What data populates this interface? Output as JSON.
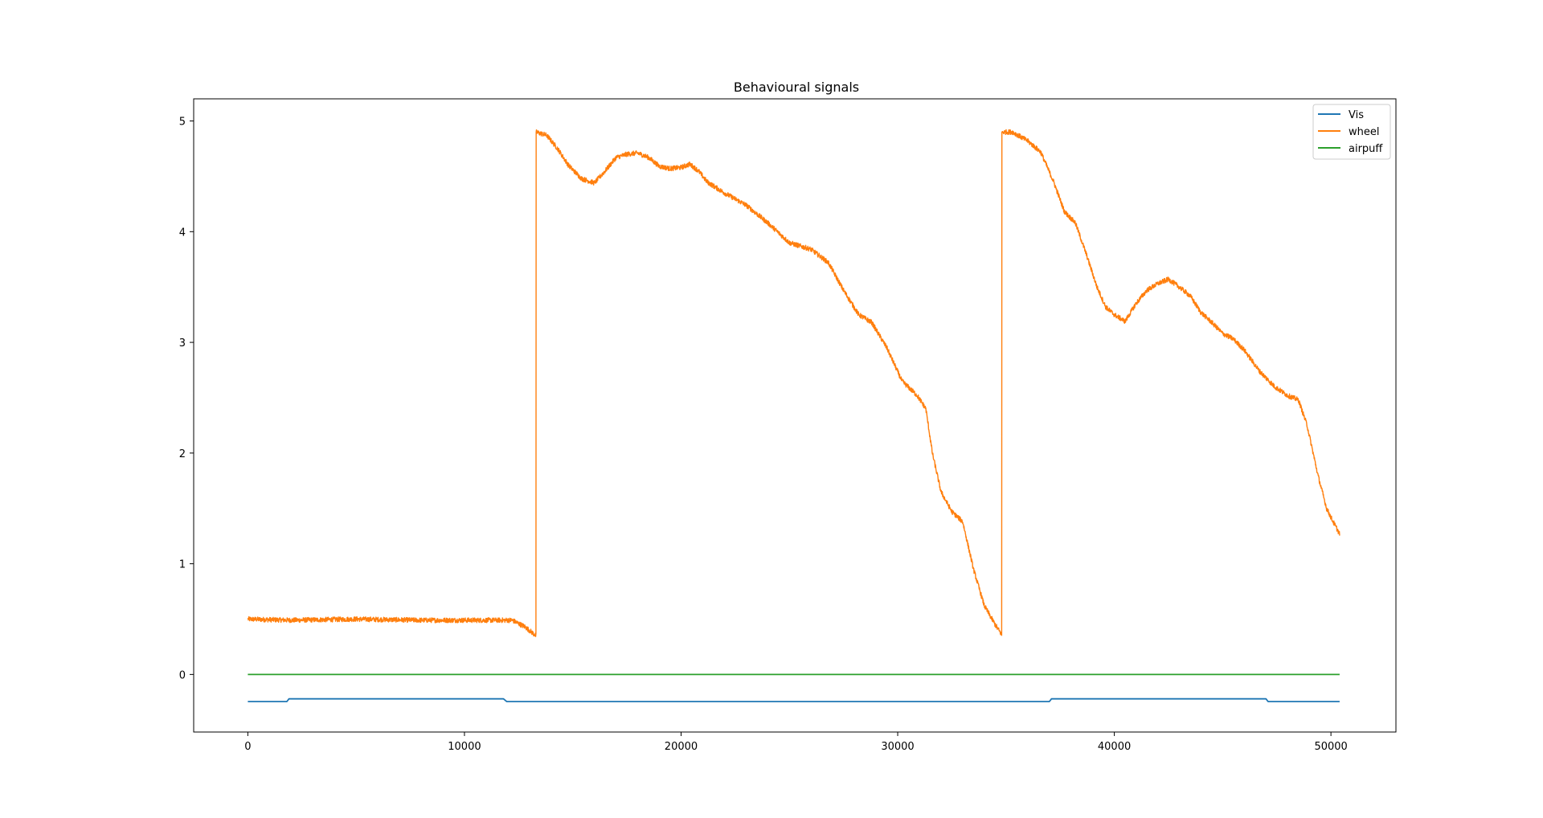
{
  "chart_data": {
    "type": "line",
    "title": "Behavioural signals",
    "xlabel": "",
    "ylabel": "",
    "xlim": [
      -2500,
      53000
    ],
    "ylim": [
      -0.52,
      5.2
    ],
    "xticks": [
      0,
      10000,
      20000,
      30000,
      40000,
      50000
    ],
    "yticks": [
      0,
      1,
      2,
      3,
      4,
      5
    ],
    "grid": false,
    "legend_position": "top-right",
    "series": [
      {
        "name": "Vis",
        "color": "#1f77b4",
        "noise": 0,
        "points": [
          [
            0,
            -0.245
          ],
          [
            1800,
            -0.245
          ],
          [
            1900,
            -0.22
          ],
          [
            11800,
            -0.22
          ],
          [
            11950,
            -0.245
          ],
          [
            37000,
            -0.245
          ],
          [
            37100,
            -0.22
          ],
          [
            47000,
            -0.22
          ],
          [
            47100,
            -0.245
          ],
          [
            50400,
            -0.245
          ]
        ]
      },
      {
        "name": "wheel",
        "color": "#ff7f0e",
        "noise": 0.022,
        "points": [
          [
            0,
            0.5
          ],
          [
            2000,
            0.49
          ],
          [
            5000,
            0.5
          ],
          [
            8000,
            0.49
          ],
          [
            11000,
            0.49
          ],
          [
            12200,
            0.49
          ],
          [
            12800,
            0.43
          ],
          [
            13300,
            0.35
          ],
          [
            13310,
            4.9
          ],
          [
            13800,
            4.87
          ],
          [
            14300,
            4.75
          ],
          [
            14800,
            4.6
          ],
          [
            15400,
            4.48
          ],
          [
            16000,
            4.44
          ],
          [
            16500,
            4.55
          ],
          [
            17000,
            4.67
          ],
          [
            17500,
            4.7
          ],
          [
            18000,
            4.71
          ],
          [
            18500,
            4.67
          ],
          [
            19000,
            4.59
          ],
          [
            19500,
            4.57
          ],
          [
            20000,
            4.58
          ],
          [
            20400,
            4.61
          ],
          [
            20800,
            4.55
          ],
          [
            21200,
            4.45
          ],
          [
            22000,
            4.35
          ],
          [
            23000,
            4.24
          ],
          [
            24000,
            4.08
          ],
          [
            25000,
            3.9
          ],
          [
            26000,
            3.84
          ],
          [
            26800,
            3.72
          ],
          [
            27500,
            3.47
          ],
          [
            28200,
            3.25
          ],
          [
            28800,
            3.18
          ],
          [
            29500,
            2.95
          ],
          [
            30200,
            2.65
          ],
          [
            30900,
            2.52
          ],
          [
            31300,
            2.4
          ],
          [
            31600,
            2.0
          ],
          [
            32000,
            1.65
          ],
          [
            32500,
            1.47
          ],
          [
            33000,
            1.38
          ],
          [
            33500,
            0.95
          ],
          [
            34000,
            0.62
          ],
          [
            34500,
            0.45
          ],
          [
            34800,
            0.36
          ],
          [
            34810,
            4.9
          ],
          [
            35300,
            4.9
          ],
          [
            36000,
            4.82
          ],
          [
            36600,
            4.72
          ],
          [
            37200,
            4.45
          ],
          [
            37700,
            4.18
          ],
          [
            38200,
            4.08
          ],
          [
            38700,
            3.8
          ],
          [
            39200,
            3.5
          ],
          [
            39600,
            3.32
          ],
          [
            40000,
            3.25
          ],
          [
            40500,
            3.19
          ],
          [
            41000,
            3.35
          ],
          [
            41500,
            3.47
          ],
          [
            42000,
            3.53
          ],
          [
            42500,
            3.57
          ],
          [
            43000,
            3.5
          ],
          [
            43500,
            3.42
          ],
          [
            44000,
            3.27
          ],
          [
            44500,
            3.18
          ],
          [
            45000,
            3.08
          ],
          [
            45500,
            3.03
          ],
          [
            46000,
            2.93
          ],
          [
            46700,
            2.74
          ],
          [
            47400,
            2.6
          ],
          [
            48000,
            2.52
          ],
          [
            48500,
            2.48
          ],
          [
            48900,
            2.25
          ],
          [
            49400,
            1.8
          ],
          [
            49800,
            1.5
          ],
          [
            50100,
            1.38
          ],
          [
            50400,
            1.27
          ]
        ]
      },
      {
        "name": "airpuff",
        "color": "#2ca02c",
        "noise": 0,
        "points": [
          [
            0,
            0
          ],
          [
            50400,
            0
          ]
        ]
      }
    ]
  }
}
